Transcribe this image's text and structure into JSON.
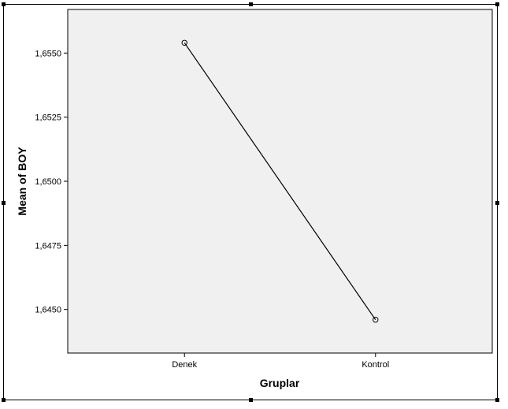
{
  "chart_data": {
    "type": "line",
    "title": "",
    "xlabel": "Gruplar",
    "ylabel": "Mean of BOY",
    "categories": [
      "Denek",
      "Kontrol"
    ],
    "series": [
      {
        "values": [
          1.6554,
          1.6446
        ]
      }
    ],
    "ylim": [
      1.6433,
      1.6567
    ],
    "yticks": [
      1.645,
      1.6475,
      1.65,
      1.6525,
      1.655
    ],
    "ytick_labels": [
      "1,6450",
      "1,6475",
      "1,6500",
      "1,6525",
      "1,6550"
    ],
    "grid": false,
    "legend": "none",
    "colors": {
      "plot_background": "#f0f0f0",
      "line": "#000000",
      "frame": "#000000"
    }
  }
}
